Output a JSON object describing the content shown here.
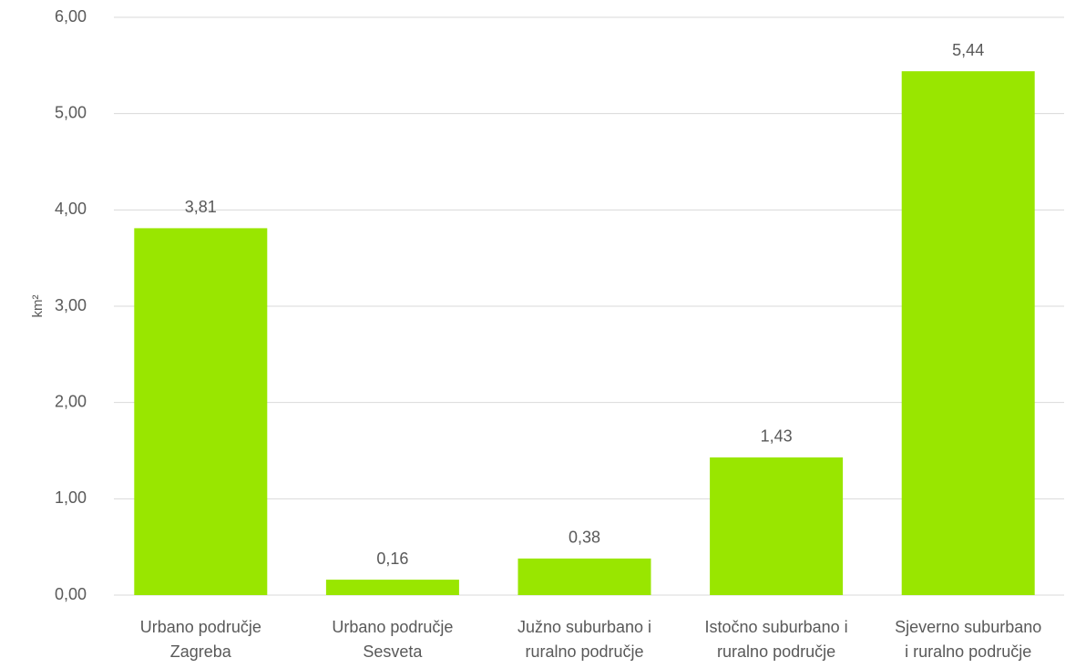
{
  "chart_data": {
    "type": "bar",
    "y_label": "km²",
    "categories": [
      "Urbano područje\nZagreba",
      "Urbano područje\nSesveta",
      "Južno suburbano i\nruralno područje",
      "Istočno suburbano i\nruralno područje",
      "Sjeverno suburbano\ni ruralno područje"
    ],
    "values": [
      3.81,
      0.16,
      0.38,
      1.43,
      5.44
    ],
    "value_labels": [
      "3,81",
      "0,16",
      "0,38",
      "1,43",
      "5,44"
    ],
    "color": "#99e600",
    "ylim": [
      0,
      6
    ],
    "yticks": [
      {
        "value": 0,
        "label": "0,00"
      },
      {
        "value": 1,
        "label": "1,00"
      },
      {
        "value": 2,
        "label": "2,00"
      },
      {
        "value": 3,
        "label": "3,00"
      },
      {
        "value": 4,
        "label": "4,00"
      },
      {
        "value": 5,
        "label": "5,00"
      },
      {
        "value": 6,
        "label": "6,00"
      }
    ],
    "grid": true
  }
}
